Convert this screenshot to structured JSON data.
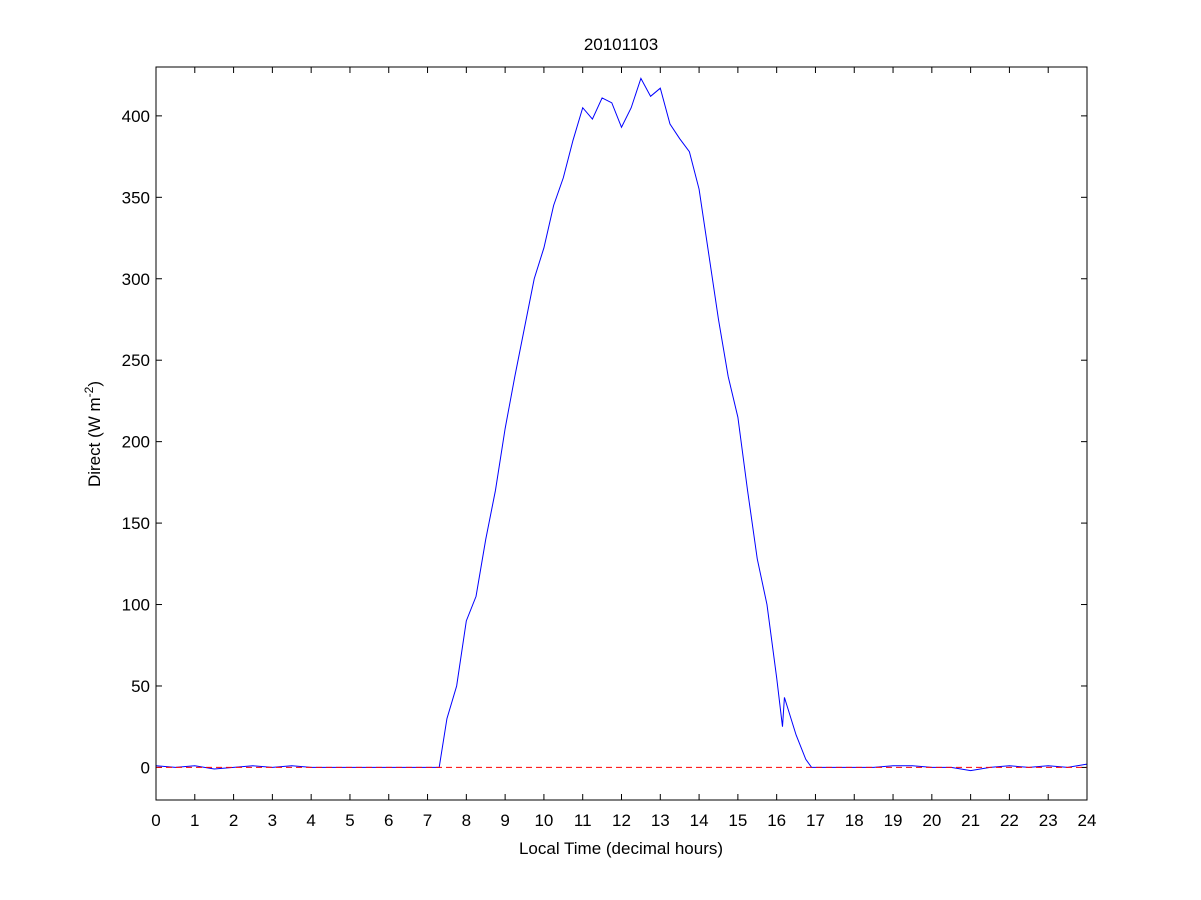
{
  "chart_data": {
    "type": "line",
    "title": "20101103",
    "xlabel": "Local Time (decimal hours)",
    "ylabel": {
      "text": "Direct (W m",
      "superscript": "-2",
      "end": ")"
    },
    "xlim": [
      0,
      24
    ],
    "xticks": [
      0,
      1,
      2,
      3,
      4,
      5,
      6,
      7,
      8,
      9,
      10,
      11,
      12,
      13,
      14,
      15,
      16,
      17,
      18,
      19,
      20,
      21,
      22,
      23,
      24
    ],
    "ylim": [
      -20,
      430
    ],
    "yticks": [
      0,
      50,
      100,
      150,
      200,
      250,
      300,
      350,
      400
    ],
    "series": [
      {
        "color": "#0000ff",
        "dash": false,
        "x": [
          0,
          0.5,
          1,
          1.5,
          2,
          2.5,
          3,
          3.5,
          4,
          4.5,
          5,
          5.5,
          6,
          6.5,
          7,
          7.3,
          7.5,
          7.75,
          8,
          8.25,
          8.5,
          8.75,
          9,
          9.25,
          9.5,
          9.75,
          10,
          10.25,
          10.5,
          10.75,
          11,
          11.25,
          11.5,
          11.75,
          12,
          12.25,
          12.5,
          12.75,
          13,
          13.25,
          13.5,
          13.75,
          14,
          14.25,
          14.5,
          14.75,
          15,
          15.25,
          15.5,
          15.75,
          16,
          16.15,
          16.2,
          16.5,
          16.75,
          16.9,
          17,
          17.5,
          18,
          18.5,
          19,
          19.5,
          20,
          20.5,
          21,
          21.5,
          22,
          22.5,
          23,
          23.5,
          24
        ],
        "values": [
          1,
          0,
          1,
          -1,
          0,
          1,
          0,
          1,
          0,
          0,
          0,
          0,
          0,
          0,
          0,
          0,
          30,
          50,
          90,
          105,
          140,
          170,
          208,
          240,
          270,
          300,
          319,
          345,
          362,
          385,
          405,
          398,
          411,
          408,
          393,
          405,
          423,
          412,
          417,
          395,
          386,
          378,
          355,
          315,
          275,
          240,
          215,
          170,
          128,
          100,
          55,
          25,
          43,
          20,
          5,
          0,
          0,
          0,
          0,
          0,
          1,
          1,
          0,
          0,
          -2,
          0,
          1,
          0,
          1,
          0,
          2
        ]
      },
      {
        "color": "#ff0000",
        "dash": true,
        "x": [
          0,
          24
        ],
        "values": [
          0,
          0
        ]
      }
    ]
  }
}
